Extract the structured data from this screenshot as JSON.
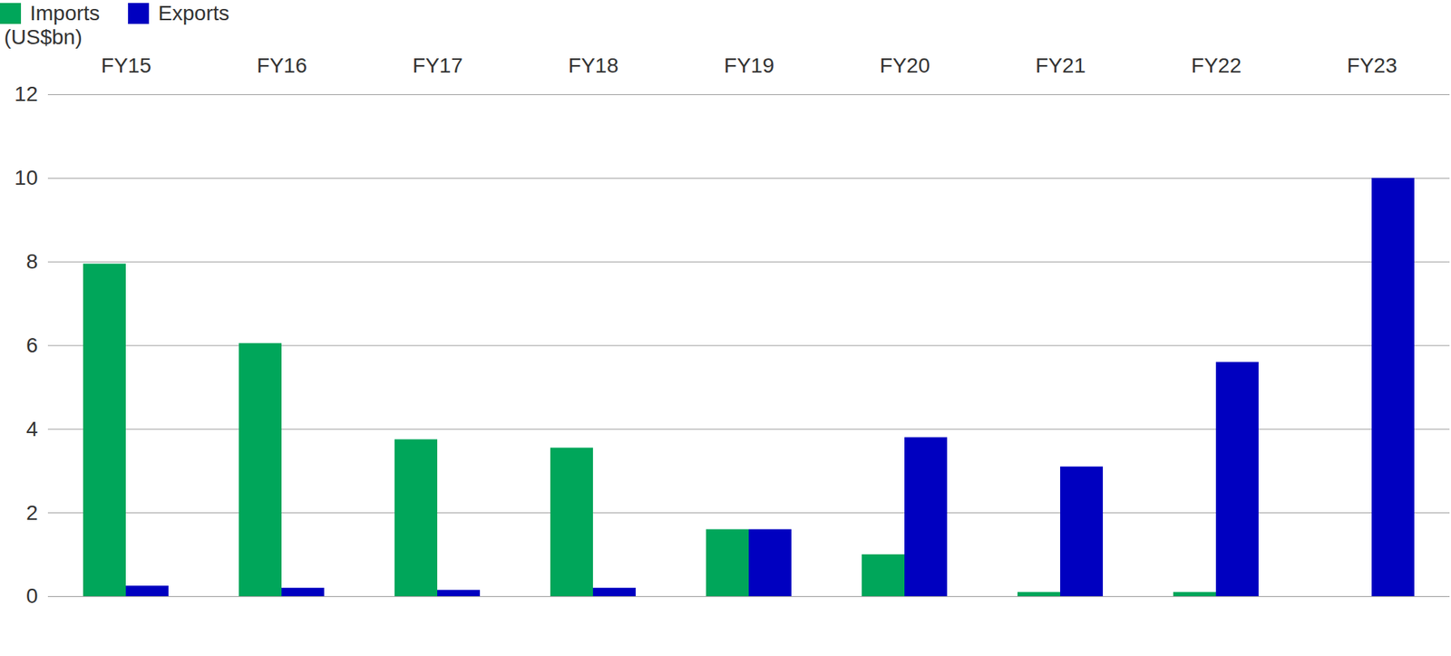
{
  "chart_data": {
    "type": "bar",
    "ylabel": "(US$bn)",
    "categories": [
      "FY15",
      "FY16",
      "FY17",
      "FY18",
      "FY19",
      "FY20",
      "FY21",
      "FY22",
      "FY23"
    ],
    "series": [
      {
        "name": "Imports",
        "color": "#00a65a",
        "values": [
          7.95,
          6.05,
          3.75,
          3.55,
          1.6,
          1.0,
          0.1,
          0.1,
          0
        ]
      },
      {
        "name": "Exports",
        "color": "#0000c0",
        "values": [
          0.25,
          0.2,
          0.15,
          0.2,
          1.6,
          3.8,
          3.1,
          5.6,
          10.0
        ]
      }
    ],
    "ylim": [
      0,
      12
    ],
    "yticks": [
      0,
      2,
      4,
      6,
      8,
      10,
      12
    ],
    "grid": true,
    "legend": "top-left"
  }
}
